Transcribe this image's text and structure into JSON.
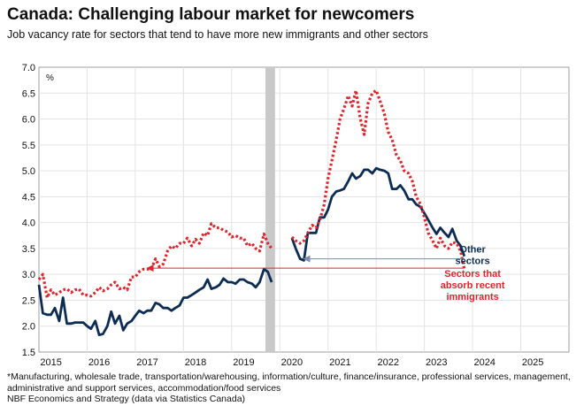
{
  "title": "Canada: Challenging labour market for newcomers",
  "subtitle": "Job vacancy rate for sectors that tend to have more new immigrants and other sectors",
  "footnote": "*Manufacturing, wholesale trade, transportation/warehousing, information/culture, finance/insurance, professional services, management, administrative and support services, accommodation/food services",
  "source": "NBF Economics and Strategy (data via Statistics Canada)",
  "chart_data": {
    "type": "line",
    "unit_label": "%",
    "ylim": [
      1.5,
      7.0
    ],
    "yticks": [
      "1.5",
      "2.0",
      "2.5",
      "3.0",
      "3.5",
      "4.0",
      "4.5",
      "5.0",
      "5.5",
      "6.0",
      "6.5",
      "7.0"
    ],
    "xlim": [
      2015.0,
      2026.0
    ],
    "xticks": [
      {
        "label": "2015",
        "x": 2015.25
      },
      {
        "label": "2016",
        "x": 2016.25
      },
      {
        "label": "2017",
        "x": 2017.25
      },
      {
        "label": "2018",
        "x": 2018.25
      },
      {
        "label": "2019",
        "x": 2019.25
      },
      {
        "label": "2020",
        "x": 2020.25
      },
      {
        "label": "2021",
        "x": 2021.25
      },
      {
        "label": "2022",
        "x": 2022.25
      },
      {
        "label": "2023",
        "x": 2023.25
      },
      {
        "label": "2024",
        "x": 2024.25
      },
      {
        "label": "2025",
        "x": 2025.25
      }
    ],
    "grid": true,
    "covid_band": [
      2019.7,
      2019.9
    ],
    "colors": {
      "other": "#0d2c54",
      "immigrant": "#e0242b",
      "band": "#c9c9c9",
      "grid": "#e3e3e3",
      "arrow": "#7a8fa8"
    },
    "series": [
      {
        "name": "Other sectors",
        "key": "other",
        "style": "solid",
        "segments": [
          [
            [
              2015.0,
              2.8
            ],
            [
              2015.08,
              2.25
            ],
            [
              2015.17,
              2.22
            ],
            [
              2015.25,
              2.22
            ],
            [
              2015.33,
              2.35
            ],
            [
              2015.42,
              2.1
            ],
            [
              2015.5,
              2.55
            ],
            [
              2015.58,
              2.05
            ],
            [
              2015.67,
              2.05
            ],
            [
              2015.75,
              2.07
            ],
            [
              2015.83,
              2.07
            ],
            [
              2015.92,
              2.07
            ],
            [
              2016.0,
              2.0
            ],
            [
              2016.08,
              1.95
            ],
            [
              2016.17,
              2.1
            ],
            [
              2016.25,
              1.83
            ],
            [
              2016.33,
              1.85
            ],
            [
              2016.42,
              2.0
            ],
            [
              2016.5,
              2.28
            ],
            [
              2016.58,
              2.05
            ],
            [
              2016.67,
              2.2
            ],
            [
              2016.75,
              1.92
            ],
            [
              2016.83,
              2.05
            ],
            [
              2016.92,
              2.1
            ],
            [
              2017.0,
              2.2
            ],
            [
              2017.08,
              2.3
            ],
            [
              2017.17,
              2.25
            ],
            [
              2017.25,
              2.3
            ],
            [
              2017.33,
              2.3
            ],
            [
              2017.42,
              2.45
            ],
            [
              2017.5,
              2.42
            ],
            [
              2017.58,
              2.35
            ],
            [
              2017.67,
              2.35
            ],
            [
              2017.75,
              2.3
            ],
            [
              2017.83,
              2.35
            ],
            [
              2017.92,
              2.4
            ],
            [
              2018.0,
              2.55
            ],
            [
              2018.08,
              2.55
            ],
            [
              2018.17,
              2.6
            ],
            [
              2018.25,
              2.65
            ],
            [
              2018.33,
              2.7
            ],
            [
              2018.42,
              2.75
            ],
            [
              2018.5,
              2.9
            ],
            [
              2018.58,
              2.72
            ],
            [
              2018.67,
              2.75
            ],
            [
              2018.75,
              2.8
            ],
            [
              2018.83,
              2.92
            ],
            [
              2018.92,
              2.85
            ],
            [
              2019.0,
              2.85
            ],
            [
              2019.08,
              2.82
            ],
            [
              2019.17,
              2.9
            ],
            [
              2019.25,
              2.9
            ],
            [
              2019.33,
              2.85
            ],
            [
              2019.42,
              2.82
            ],
            [
              2019.5,
              2.75
            ],
            [
              2019.58,
              2.85
            ],
            [
              2019.67,
              3.1
            ],
            [
              2019.75,
              3.05
            ],
            [
              2019.83,
              2.85
            ]
          ],
          [
            [
              2020.25,
              3.7
            ],
            [
              2020.33,
              3.5
            ],
            [
              2020.42,
              3.3
            ],
            [
              2020.5,
              3.27
            ],
            [
              2020.58,
              3.8
            ],
            [
              2020.67,
              3.8
            ],
            [
              2020.75,
              3.8
            ],
            [
              2020.83,
              4.1
            ],
            [
              2020.92,
              4.1
            ],
            [
              2021.0,
              4.25
            ],
            [
              2021.08,
              4.5
            ],
            [
              2021.17,
              4.6
            ],
            [
              2021.25,
              4.62
            ],
            [
              2021.33,
              4.65
            ],
            [
              2021.42,
              4.8
            ],
            [
              2021.5,
              4.95
            ],
            [
              2021.58,
              4.85
            ],
            [
              2021.67,
              4.9
            ],
            [
              2021.75,
              5.02
            ],
            [
              2021.83,
              5.02
            ],
            [
              2021.92,
              4.95
            ],
            [
              2022.0,
              5.05
            ],
            [
              2022.08,
              5.02
            ],
            [
              2022.17,
              5.0
            ],
            [
              2022.25,
              4.95
            ],
            [
              2022.33,
              4.65
            ],
            [
              2022.42,
              4.65
            ],
            [
              2022.5,
              4.72
            ],
            [
              2022.58,
              4.62
            ],
            [
              2022.67,
              4.45
            ],
            [
              2022.75,
              4.45
            ],
            [
              2022.83,
              4.35
            ],
            [
              2022.92,
              4.3
            ],
            [
              2023.0,
              4.18
            ],
            [
              2023.08,
              4.05
            ],
            [
              2023.17,
              3.9
            ],
            [
              2023.25,
              3.78
            ],
            [
              2023.33,
              3.9
            ],
            [
              2023.42,
              3.8
            ],
            [
              2023.5,
              3.72
            ],
            [
              2023.58,
              3.88
            ],
            [
              2023.67,
              3.65
            ],
            [
              2023.75,
              3.55
            ],
            [
              2023.83,
              3.35
            ]
          ]
        ]
      },
      {
        "name": "Sectors that absorb recent immigrants",
        "key": "immigrant",
        "style": "dotted",
        "segments": [
          [
            [
              2015.0,
              2.9
            ],
            [
              2015.08,
              3.0
            ],
            [
              2015.17,
              2.55
            ],
            [
              2015.25,
              2.7
            ],
            [
              2015.33,
              2.6
            ],
            [
              2015.42,
              2.65
            ],
            [
              2015.5,
              2.7
            ],
            [
              2015.58,
              2.72
            ],
            [
              2015.67,
              2.65
            ],
            [
              2015.75,
              2.7
            ],
            [
              2015.83,
              2.72
            ],
            [
              2015.92,
              2.6
            ],
            [
              2016.0,
              2.6
            ],
            [
              2016.08,
              2.58
            ],
            [
              2016.17,
              2.65
            ],
            [
              2016.25,
              2.75
            ],
            [
              2016.33,
              2.68
            ],
            [
              2016.42,
              2.72
            ],
            [
              2016.5,
              2.8
            ],
            [
              2016.58,
              2.85
            ],
            [
              2016.67,
              2.72
            ],
            [
              2016.75,
              2.75
            ],
            [
              2016.83,
              2.7
            ],
            [
              2016.92,
              2.95
            ],
            [
              2017.0,
              2.95
            ],
            [
              2017.08,
              3.05
            ],
            [
              2017.17,
              3.1
            ],
            [
              2017.25,
              3.1
            ],
            [
              2017.33,
              3.1
            ],
            [
              2017.42,
              3.3
            ],
            [
              2017.5,
              3.15
            ],
            [
              2017.58,
              3.2
            ],
            [
              2017.67,
              3.45
            ],
            [
              2017.75,
              3.55
            ],
            [
              2017.83,
              3.5
            ],
            [
              2017.92,
              3.6
            ],
            [
              2018.0,
              3.6
            ],
            [
              2018.08,
              3.7
            ],
            [
              2018.17,
              3.55
            ],
            [
              2018.25,
              3.68
            ],
            [
              2018.33,
              3.6
            ],
            [
              2018.42,
              3.8
            ],
            [
              2018.5,
              3.75
            ],
            [
              2018.58,
              3.98
            ],
            [
              2018.67,
              3.9
            ],
            [
              2018.75,
              3.9
            ],
            [
              2018.83,
              3.85
            ],
            [
              2018.92,
              3.82
            ],
            [
              2019.0,
              3.72
            ],
            [
              2019.08,
              3.75
            ],
            [
              2019.17,
              3.7
            ],
            [
              2019.25,
              3.7
            ],
            [
              2019.33,
              3.55
            ],
            [
              2019.42,
              3.6
            ],
            [
              2019.5,
              3.5
            ],
            [
              2019.58,
              3.45
            ],
            [
              2019.67,
              3.78
            ],
            [
              2019.75,
              3.6
            ],
            [
              2019.83,
              3.5
            ]
          ],
          [
            [
              2020.25,
              3.72
            ],
            [
              2020.33,
              3.65
            ],
            [
              2020.42,
              3.6
            ],
            [
              2020.5,
              3.65
            ],
            [
              2020.58,
              3.8
            ],
            [
              2020.67,
              3.95
            ],
            [
              2020.75,
              3.9
            ],
            [
              2020.83,
              4.05
            ],
            [
              2020.92,
              4.35
            ],
            [
              2021.0,
              4.85
            ],
            [
              2021.08,
              5.2
            ],
            [
              2021.17,
              5.6
            ],
            [
              2021.25,
              6.0
            ],
            [
              2021.33,
              6.2
            ],
            [
              2021.42,
              6.45
            ],
            [
              2021.5,
              6.25
            ],
            [
              2021.58,
              6.55
            ],
            [
              2021.67,
              6.0
            ],
            [
              2021.75,
              5.7
            ],
            [
              2021.83,
              6.3
            ],
            [
              2021.92,
              6.5
            ],
            [
              2022.0,
              6.55
            ],
            [
              2022.08,
              6.35
            ],
            [
              2022.17,
              6.1
            ],
            [
              2022.25,
              5.75
            ],
            [
              2022.33,
              5.6
            ],
            [
              2022.42,
              5.3
            ],
            [
              2022.5,
              5.2
            ],
            [
              2022.58,
              5.0
            ],
            [
              2022.67,
              4.95
            ],
            [
              2022.75,
              4.8
            ],
            [
              2022.83,
              4.5
            ],
            [
              2022.92,
              4.35
            ],
            [
              2023.0,
              4.1
            ],
            [
              2023.08,
              3.8
            ],
            [
              2023.17,
              3.65
            ],
            [
              2023.25,
              3.5
            ],
            [
              2023.33,
              3.7
            ],
            [
              2023.42,
              3.55
            ],
            [
              2023.5,
              3.5
            ],
            [
              2023.58,
              3.62
            ],
            [
              2023.67,
              3.6
            ],
            [
              2023.75,
              3.45
            ],
            [
              2023.83,
              3.1
            ]
          ]
        ]
      }
    ],
    "annotations": [
      {
        "key": "other",
        "text": [
          "Other",
          "sectors"
        ],
        "x": 2024.0,
        "y": 3.42,
        "from": [
          2023.83,
          3.3
        ],
        "to": [
          2020.5,
          3.3
        ]
      },
      {
        "key": "immigrant",
        "text": [
          "Sectors that",
          "absorb recent",
          "immigrants"
        ],
        "x": 2024.0,
        "y": 2.95,
        "from": [
          2023.83,
          3.12
        ],
        "to": [
          2017.25,
          3.12
        ]
      }
    ]
  }
}
